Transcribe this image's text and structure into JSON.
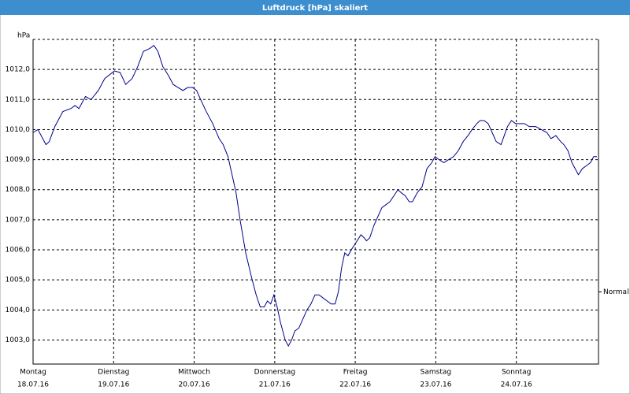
{
  "window_title": "Luftdruck [hPa] skaliert",
  "chart_data": {
    "type": "line",
    "y_unit_label": "hPa",
    "x": [
      0,
      0.06,
      0.16,
      0.2,
      0.27,
      0.37,
      0.47,
      0.52,
      0.57,
      0.65,
      0.72,
      0.81,
      0.89,
      1.01,
      1.08,
      1.15,
      1.23,
      1.3,
      1.37,
      1.45,
      1.5,
      1.55,
      1.61,
      1.68,
      1.74,
      1.8,
      1.86,
      1.92,
      1.98,
      2.03,
      2.08,
      2.15,
      2.23,
      2.31,
      2.36,
      2.42,
      2.47,
      2.52,
      2.57,
      2.64,
      2.72,
      2.77,
      2.82,
      2.87,
      2.91,
      2.95,
      2.99,
      3.03,
      3.07,
      3.13,
      3.17,
      3.21,
      3.25,
      3.3,
      3.35,
      3.4,
      3.45,
      3.5,
      3.55,
      3.6,
      3.65,
      3.7,
      3.75,
      3.79,
      3.83,
      3.87,
      3.91,
      3.95,
      4.0,
      4.07,
      4.11,
      4.14,
      4.18,
      4.23,
      4.28,
      4.33,
      4.38,
      4.43,
      4.48,
      4.53,
      4.57,
      4.62,
      4.67,
      4.71,
      4.77,
      4.83,
      4.89,
      4.95,
      4.99,
      5.04,
      5.1,
      5.16,
      5.22,
      5.28,
      5.34,
      5.4,
      5.45,
      5.51,
      5.55,
      5.6,
      5.65,
      5.7,
      5.75,
      5.81,
      5.85,
      5.89,
      5.94,
      5.99,
      6.04,
      6.1,
      6.16,
      6.24,
      6.31,
      6.38,
      6.43,
      6.49,
      6.55,
      6.59,
      6.64,
      6.69,
      6.73,
      6.77,
      6.82,
      6.87,
      6.92,
      6.96,
      7.0
    ],
    "series": [
      {
        "name": "Luftdruck",
        "color": "#00008b",
        "values": [
          1009.9,
          1010.0,
          1009.5,
          1009.6,
          1010.1,
          1010.6,
          1010.7,
          1010.8,
          1010.7,
          1011.1,
          1011.0,
          1011.3,
          1011.7,
          1011.95,
          1011.9,
          1011.5,
          1011.7,
          1012.1,
          1012.6,
          1012.7,
          1012.8,
          1012.6,
          1012.1,
          1011.8,
          1011.5,
          1011.4,
          1011.3,
          1011.4,
          1011.4,
          1011.3,
          1011.0,
          1010.6,
          1010.2,
          1009.7,
          1009.5,
          1009.1,
          1008.5,
          1007.9,
          1007.0,
          1005.9,
          1005.0,
          1004.5,
          1004.1,
          1004.1,
          1004.3,
          1004.2,
          1004.5,
          1004.1,
          1003.6,
          1003.0,
          1002.8,
          1003.0,
          1003.3,
          1003.4,
          1003.7,
          1004.0,
          1004.2,
          1004.5,
          1004.5,
          1004.4,
          1004.3,
          1004.2,
          1004.2,
          1004.6,
          1005.4,
          1005.9,
          1005.8,
          1006.0,
          1006.2,
          1006.5,
          1006.4,
          1006.3,
          1006.4,
          1006.8,
          1007.1,
          1007.4,
          1007.5,
          1007.6,
          1007.8,
          1008.0,
          1007.9,
          1007.8,
          1007.6,
          1007.6,
          1007.9,
          1008.1,
          1008.7,
          1008.9,
          1009.1,
          1009.0,
          1008.9,
          1009.0,
          1009.1,
          1009.3,
          1009.6,
          1009.8,
          1010.0,
          1010.2,
          1010.3,
          1010.3,
          1010.2,
          1009.9,
          1009.6,
          1009.5,
          1009.8,
          1010.1,
          1010.3,
          1010.2,
          1010.2,
          1010.2,
          1010.1,
          1010.1,
          1010.0,
          1009.9,
          1009.7,
          1009.8,
          1009.6,
          1009.5,
          1009.3,
          1008.9,
          1008.7,
          1008.5,
          1008.7,
          1008.8,
          1008.9,
          1009.1,
          1009.1
        ]
      }
    ],
    "xlim": [
      0,
      7.02
    ],
    "xticks": [
      {
        "value": 0,
        "label": "Montag"
      },
      {
        "value": 1,
        "label": "Dienstag"
      },
      {
        "value": 2,
        "label": "Mittwoch"
      },
      {
        "value": 3,
        "label": "Donnerstag"
      },
      {
        "value": 4,
        "label": "Freitag"
      },
      {
        "value": 5,
        "label": "Samstag"
      },
      {
        "value": 6,
        "label": "Sonntag"
      }
    ],
    "xtick_dates": [
      "18.07.16",
      "19.07.16",
      "20.07.16",
      "21.07.16",
      "22.07.16",
      "23.07.16",
      "24.07.16"
    ],
    "ylim": [
      1002.2,
      1013.0
    ],
    "yticks": [
      {
        "value": 1003,
        "label": "1003,0"
      },
      {
        "value": 1004,
        "label": "1004,0"
      },
      {
        "value": 1005,
        "label": "1005,0"
      },
      {
        "value": 1006,
        "label": "1006,0"
      },
      {
        "value": 1007,
        "label": "1007,0"
      },
      {
        "value": 1008,
        "label": "1008,0"
      },
      {
        "value": 1009,
        "label": "1009,0"
      },
      {
        "value": 1010,
        "label": "1010,0"
      },
      {
        "value": 1011,
        "label": "1011,0"
      },
      {
        "value": 1012,
        "label": "1012,0"
      }
    ],
    "grid": true,
    "annotations": [
      {
        "text": "Normal",
        "value": 1004.6
      }
    ]
  }
}
